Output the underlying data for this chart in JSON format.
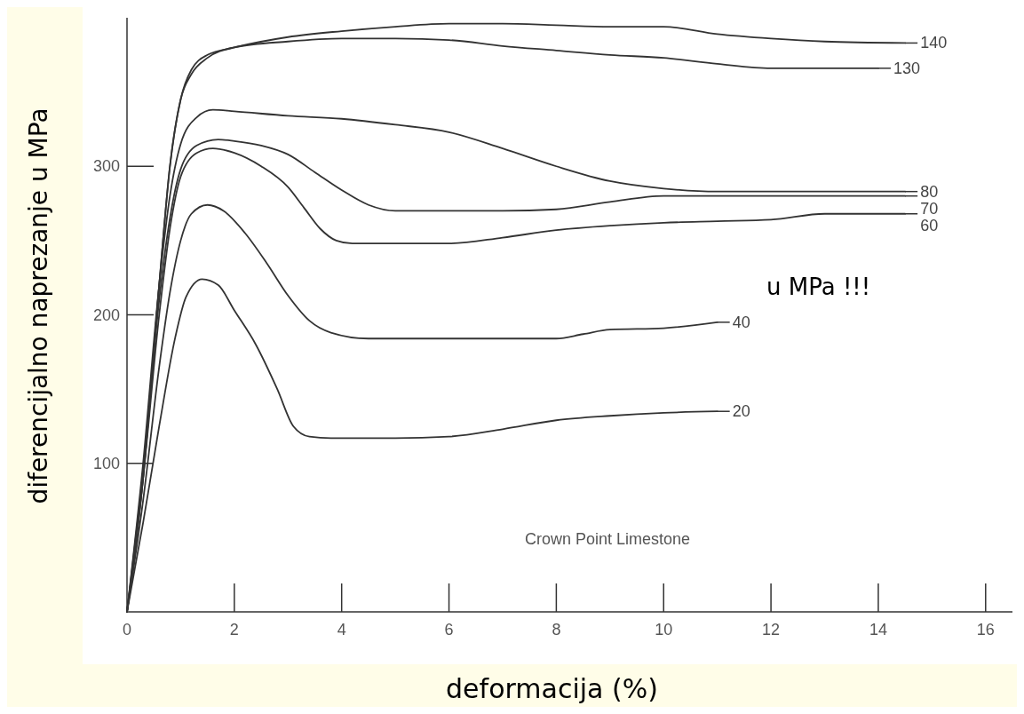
{
  "chart_data": {
    "type": "line",
    "xlabel": "deformacija (%)",
    "ylabel": "diferencijalno naprezanje u MPa",
    "annotations": [
      "u MPa !!!",
      "Crown Point Limestone"
    ],
    "xlim": [
      0,
      16.5
    ],
    "ylim": [
      0,
      400
    ],
    "xticks": [
      0,
      2,
      4,
      6,
      8,
      10,
      12,
      14,
      16
    ],
    "yticks": [
      100,
      200,
      300
    ],
    "grid": false,
    "legend": "right",
    "marker": "none",
    "line_style": "solid",
    "series": [
      {
        "name": "140",
        "color": "#333333",
        "x": [
          0,
          0.3,
          0.6,
          0.8,
          1.0,
          1.2,
          1.5,
          2,
          3,
          4,
          5,
          6,
          7,
          8,
          9,
          10,
          11,
          12,
          13,
          14.5
        ],
        "values": [
          0,
          90,
          220,
          300,
          345,
          365,
          375,
          380,
          387,
          391,
          394,
          396,
          396,
          395,
          394,
          394,
          389,
          386,
          384,
          383
        ]
      },
      {
        "name": "130",
        "color": "#333333",
        "x": [
          0,
          0.3,
          0.6,
          0.8,
          1.0,
          1.2,
          1.5,
          2,
          3,
          4,
          5,
          6,
          7,
          8,
          9,
          10,
          11,
          12,
          13,
          14
        ],
        "values": [
          0,
          90,
          220,
          300,
          345,
          362,
          373,
          380,
          384,
          386,
          386,
          385,
          381,
          378,
          375,
          373,
          369,
          366,
          366,
          366
        ]
      },
      {
        "name": "80",
        "color": "#333333",
        "x": [
          0,
          0.3,
          0.6,
          0.8,
          1.0,
          1.3,
          1.6,
          2,
          3,
          4,
          5,
          6,
          7,
          8,
          9,
          10,
          11,
          12,
          13,
          14.5
        ],
        "values": [
          0,
          100,
          220,
          280,
          315,
          333,
          338,
          337,
          334,
          332,
          328,
          323,
          312,
          300,
          290,
          285,
          283,
          283,
          283,
          283
        ]
      },
      {
        "name": "70",
        "color": "#333333",
        "x": [
          0,
          0.3,
          0.6,
          0.8,
          1.0,
          1.3,
          1.7,
          2,
          2.5,
          3,
          3.5,
          4,
          4.5,
          5,
          6,
          7,
          8,
          9,
          10,
          11,
          12,
          13,
          14.5
        ],
        "values": [
          0,
          95,
          210,
          265,
          298,
          314,
          318,
          317,
          314,
          308,
          296,
          284,
          274,
          270,
          270,
          270,
          271,
          276,
          280,
          280,
          280,
          280,
          280
        ]
      },
      {
        "name": "60",
        "color": "#333333",
        "x": [
          0,
          0.3,
          0.6,
          0.8,
          1.0,
          1.3,
          1.6,
          2,
          2.5,
          3,
          3.3,
          3.6,
          3.9,
          4.2,
          5,
          6,
          7,
          8,
          9,
          10,
          11,
          12,
          13,
          14.5
        ],
        "values": [
          0,
          90,
          200,
          258,
          293,
          309,
          312,
          309,
          300,
          286,
          272,
          258,
          250,
          248,
          248,
          248,
          252,
          257,
          260,
          262,
          263,
          264,
          268,
          268
        ]
      },
      {
        "name": "40",
        "color": "#333333",
        "x": [
          0,
          0.3,
          0.6,
          0.8,
          1.0,
          1.2,
          1.5,
          1.8,
          2.2,
          2.6,
          3,
          3.4,
          3.8,
          4.5,
          5,
          6,
          7,
          8,
          8.5,
          9,
          10,
          11
        ],
        "values": [
          0,
          75,
          165,
          215,
          250,
          268,
          274,
          270,
          255,
          235,
          213,
          196,
          188,
          184,
          184,
          184,
          184,
          184,
          187,
          190,
          191,
          195
        ]
      },
      {
        "name": "20",
        "color": "#333333",
        "x": [
          0,
          0.3,
          0.6,
          0.9,
          1.1,
          1.4,
          1.7,
          2,
          2.4,
          2.8,
          3.1,
          3.4,
          3.8,
          4.5,
          5,
          6,
          7,
          8,
          9,
          10,
          11
        ],
        "values": [
          0,
          60,
          125,
          185,
          212,
          224,
          220,
          203,
          180,
          150,
          125,
          118,
          117,
          117,
          117,
          118,
          123,
          129,
          132,
          134,
          135
        ]
      }
    ]
  }
}
